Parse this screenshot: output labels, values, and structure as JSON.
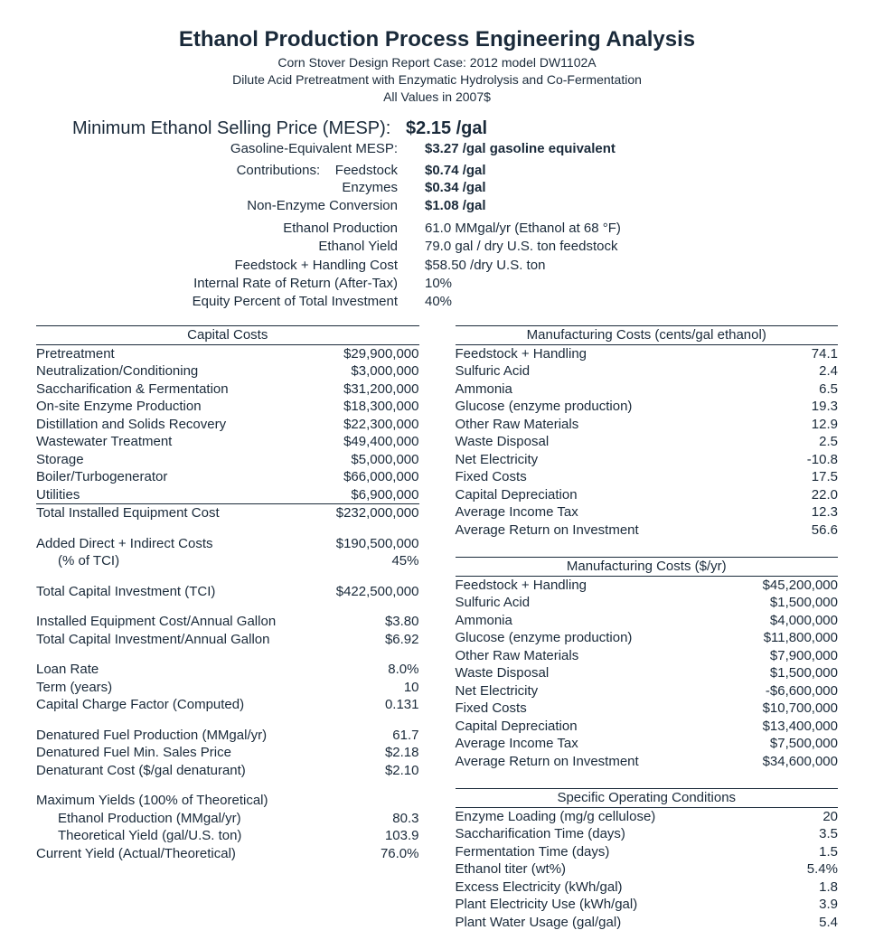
{
  "header": {
    "title": "Ethanol Production Process Engineering Analysis",
    "sub1": "Corn Stover Design Report Case: 2012 model DW1102A",
    "sub2": "Dilute Acid Pretreatment with Enzymatic Hydrolysis and Co-Fermentation",
    "sub3": "All Values in 2007$"
  },
  "mesp": {
    "label": "Minimum Ethanol Selling Price (MESP):",
    "value": "$2.15 /gal",
    "ge_label": "Gasoline-Equivalent MESP:",
    "ge_value": "$3.27 /gal gasoline equivalent",
    "contrib_label": "Contributions:",
    "contrib": [
      {
        "label": "Feedstock",
        "value": "$0.74 /gal"
      },
      {
        "label": "Enzymes",
        "value": "$0.34 /gal"
      },
      {
        "label": "Non-Enzyme Conversion",
        "value": "$1.08 /gal"
      }
    ],
    "metrics": [
      {
        "label": "Ethanol Production",
        "value": "61.0 MMgal/yr (Ethanol at 68 °F)"
      },
      {
        "label": "Ethanol Yield",
        "value": "79.0 gal / dry U.S. ton feedstock"
      },
      {
        "label": "Feedstock + Handling Cost",
        "value": "$58.50 /dry U.S. ton"
      },
      {
        "label": "Internal Rate of Return (After-Tax)",
        "value": "10%"
      },
      {
        "label": "Equity Percent of Total Investment",
        "value": "40%"
      }
    ]
  },
  "capital_costs": {
    "heading": "Capital Costs",
    "items": [
      {
        "label": "Pretreatment",
        "value": "$29,900,000"
      },
      {
        "label": "Neutralization/Conditioning",
        "value": "$3,000,000"
      },
      {
        "label": "Saccharification & Fermentation",
        "value": "$31,200,000"
      },
      {
        "label": "On-site Enzyme Production",
        "value": "$18,300,000"
      },
      {
        "label": "Distillation and Solids Recovery",
        "value": "$22,300,000"
      },
      {
        "label": "Wastewater Treatment",
        "value": "$49,400,000"
      },
      {
        "label": "Storage",
        "value": "$5,000,000"
      },
      {
        "label": "Boiler/Turbogenerator",
        "value": "$66,000,000"
      },
      {
        "label": "Utilities",
        "value": "$6,900,000"
      }
    ],
    "total_label": "Total Installed Equipment Cost",
    "total_value": "$232,000,000",
    "added_label": "Added Direct + Indirect Costs",
    "added_value": "$190,500,000",
    "added_pct_label": "(% of TCI)",
    "added_pct_value": "45%",
    "tci_label": "Total Capital Investment (TCI)",
    "tci_value": "$422,500,000",
    "per_gal": [
      {
        "label": "Installed Equipment Cost/Annual Gallon",
        "value": "$3.80"
      },
      {
        "label": "Total Capital Investment/Annual Gallon",
        "value": "$6.92"
      }
    ],
    "loan": [
      {
        "label": "Loan Rate",
        "value": "8.0%"
      },
      {
        "label": "Term (years)",
        "value": "10"
      },
      {
        "label": "Capital Charge Factor (Computed)",
        "value": "0.131"
      }
    ],
    "denatured": [
      {
        "label": "Denatured Fuel Production (MMgal/yr)",
        "value": "61.7"
      },
      {
        "label": "Denatured Fuel Min. Sales Price",
        "value": "$2.18"
      },
      {
        "label": "Denaturant Cost ($/gal denaturant)",
        "value": "$2.10"
      }
    ],
    "yields_header": "Maximum Yields (100% of Theoretical)",
    "yields": [
      {
        "label": "Ethanol Production (MMgal/yr)",
        "value": "80.3",
        "indent": true
      },
      {
        "label": "Theoretical Yield (gal/U.S. ton)",
        "value": "103.9",
        "indent": true
      },
      {
        "label": "Current Yield (Actual/Theoretical)",
        "value": "76.0%",
        "indent": false
      }
    ]
  },
  "mfg_cents": {
    "heading": "Manufacturing Costs (cents/gal ethanol)",
    "items": [
      {
        "label": "Feedstock + Handling",
        "value": "74.1"
      },
      {
        "label": "Sulfuric Acid",
        "value": "2.4"
      },
      {
        "label": "Ammonia",
        "value": "6.5"
      },
      {
        "label": "Glucose (enzyme production)",
        "value": "19.3"
      },
      {
        "label": "Other Raw Materials",
        "value": "12.9"
      },
      {
        "label": "Waste Disposal",
        "value": "2.5"
      },
      {
        "label": "Net Electricity",
        "value": "-10.8"
      },
      {
        "label": "Fixed Costs",
        "value": "17.5"
      },
      {
        "label": "Capital Depreciation",
        "value": "22.0"
      },
      {
        "label": "Average Income Tax",
        "value": "12.3"
      },
      {
        "label": "Average Return on Investment",
        "value": "56.6"
      }
    ]
  },
  "mfg_year": {
    "heading": "Manufacturing Costs ($/yr)",
    "items": [
      {
        "label": "Feedstock + Handling",
        "value": "$45,200,000"
      },
      {
        "label": "Sulfuric Acid",
        "value": "$1,500,000"
      },
      {
        "label": "Ammonia",
        "value": "$4,000,000"
      },
      {
        "label": "Glucose (enzyme production)",
        "value": "$11,800,000"
      },
      {
        "label": "Other Raw Materials",
        "value": "$7,900,000"
      },
      {
        "label": "Waste Disposal",
        "value": "$1,500,000"
      },
      {
        "label": "Net Electricity",
        "value": "-$6,600,000"
      },
      {
        "label": "Fixed Costs",
        "value": "$10,700,000"
      },
      {
        "label": "Capital Depreciation",
        "value": "$13,400,000"
      },
      {
        "label": "Average Income Tax",
        "value": "$7,500,000"
      },
      {
        "label": "Average Return on Investment",
        "value": "$34,600,000"
      }
    ]
  },
  "op_cond": {
    "heading": "Specific Operating Conditions",
    "items": [
      {
        "label": "Enzyme Loading (mg/g cellulose)",
        "value": "20"
      },
      {
        "label": "Saccharification Time (days)",
        "value": "3.5"
      },
      {
        "label": "Fermentation Time (days)",
        "value": "1.5"
      },
      {
        "label": "Ethanol titer (wt%)",
        "value": "5.4%"
      },
      {
        "label": "Excess Electricity (kWh/gal)",
        "value": "1.8"
      },
      {
        "label": "Plant Electricity Use (kWh/gal)",
        "value": "3.9"
      },
      {
        "label": "Plant Water Usage (gal/gal)",
        "value": "5.4"
      }
    ]
  }
}
